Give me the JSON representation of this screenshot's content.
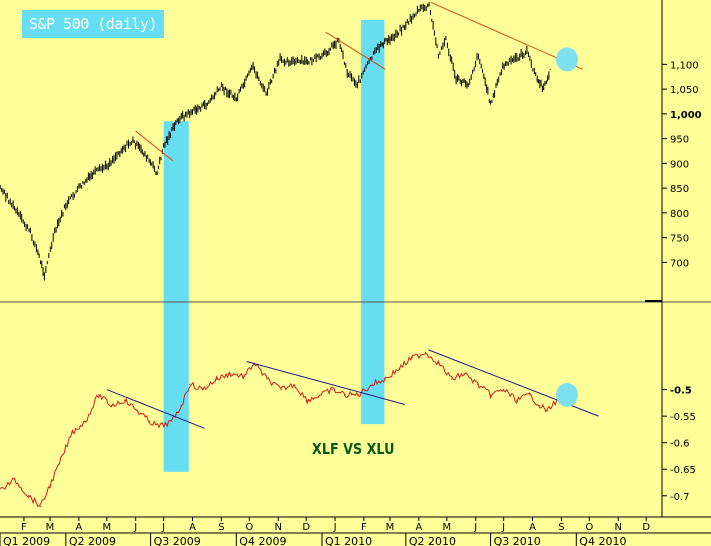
{
  "chart_data": [
    {
      "type": "line",
      "title": "S&P 500 (daily)",
      "xlabel": "",
      "ylabel": "",
      "ylim": [
        620,
        1230
      ],
      "y_ticks": [
        "700",
        "750",
        "800",
        "850",
        "900",
        "950",
        "1,000",
        "1,050",
        "1,100"
      ],
      "y_tick_values": [
        700,
        750,
        800,
        850,
        900,
        950,
        1000,
        1050,
        1100
      ],
      "bold_tick": "1,000",
      "series": [
        {
          "color": "#000000",
          "points": [
            [
              "2009-01-10",
              880
            ],
            [
              "2009-01-25",
              840
            ],
            [
              "2009-02-08",
              800
            ],
            [
              "2009-02-22",
              760
            ],
            [
              "2009-03-02",
              720
            ],
            [
              "2009-03-09",
              676
            ],
            [
              "2009-03-20",
              760
            ],
            [
              "2009-04-01",
              815
            ],
            [
              "2009-04-15",
              850
            ],
            [
              "2009-05-01",
              880
            ],
            [
              "2009-05-15",
              895
            ],
            [
              "2009-06-01",
              930
            ],
            [
              "2009-06-12",
              945
            ],
            [
              "2009-06-25",
              918
            ],
            [
              "2009-07-08",
              880
            ],
            [
              "2009-07-15",
              935
            ],
            [
              "2009-07-31",
              990
            ],
            [
              "2009-08-15",
              1005
            ],
            [
              "2009-08-31",
              1020
            ],
            [
              "2009-09-15",
              1055
            ],
            [
              "2009-10-01",
              1030
            ],
            [
              "2009-10-19",
              1095
            ],
            [
              "2009-11-02",
              1040
            ],
            [
              "2009-11-17",
              1110
            ],
            [
              "2009-12-01",
              1105
            ],
            [
              "2009-12-15",
              1105
            ],
            [
              "2010-01-01",
              1115
            ],
            [
              "2010-01-19",
              1150
            ],
            [
              "2010-01-28",
              1085
            ],
            [
              "2010-02-08",
              1060
            ],
            [
              "2010-02-22",
              1110
            ],
            [
              "2010-03-05",
              1140
            ],
            [
              "2010-03-15",
              1150
            ],
            [
              "2010-04-01",
              1180
            ],
            [
              "2010-04-15",
              1210
            ],
            [
              "2010-04-26",
              1218
            ],
            [
              "2010-05-06",
              1120
            ],
            [
              "2010-05-14",
              1150
            ],
            [
              "2010-05-25",
              1070
            ],
            [
              "2010-06-07",
              1060
            ],
            [
              "2010-06-18",
              1120
            ],
            [
              "2010-07-01",
              1020
            ],
            [
              "2010-07-14",
              1095
            ],
            [
              "2010-07-26",
              1110
            ],
            [
              "2010-08-09",
              1125
            ],
            [
              "2010-08-20",
              1070
            ],
            [
              "2010-08-27",
              1050
            ],
            [
              "2010-09-03",
              1090
            ]
          ]
        }
      ],
      "trendlines": [
        {
          "color": "#d94a1a",
          "from": [
            "2009-06-15",
            965
          ],
          "to": [
            "2009-07-25",
            905
          ]
        },
        {
          "color": "#d94a1a",
          "from": [
            "2010-01-05",
            1165
          ],
          "to": [
            "2010-03-10",
            1090
          ]
        },
        {
          "color": "#d94a1a",
          "from": [
            "2010-04-28",
            1225
          ],
          "to": [
            "2010-10-08",
            1090
          ]
        }
      ],
      "markers": [
        {
          "date": "2010-09-21",
          "value": 1110,
          "color": "#7fe0f0"
        }
      ]
    },
    {
      "type": "line",
      "title": "XLF VS XLU",
      "xlabel": "",
      "ylabel": "",
      "ylim": [
        -0.74,
        -0.335
      ],
      "y_ticks": [
        "-0.5",
        "-0.55",
        "-0.6",
        "-0.65",
        "-0.7"
      ],
      "y_tick_values": [
        -0.5,
        -0.55,
        -0.6,
        -0.65,
        -0.7
      ],
      "bold_tick": "-0.5",
      "series": [
        {
          "color": "#c8201a",
          "points": [
            [
              "2009-01-05",
              -0.66
            ],
            [
              "2009-01-20",
              -0.69
            ],
            [
              "2009-02-05",
              -0.67
            ],
            [
              "2009-02-20",
              -0.7
            ],
            [
              "2009-03-05",
              -0.72
            ],
            [
              "2009-03-15",
              -0.68
            ],
            [
              "2009-03-25",
              -0.64
            ],
            [
              "2009-04-08",
              -0.58
            ],
            [
              "2009-04-22",
              -0.56
            ],
            [
              "2009-05-06",
              -0.51
            ],
            [
              "2009-05-20",
              -0.53
            ],
            [
              "2009-06-03",
              -0.52
            ],
            [
              "2009-06-17",
              -0.54
            ],
            [
              "2009-06-30",
              -0.56
            ],
            [
              "2009-07-10",
              -0.57
            ],
            [
              "2009-07-24",
              -0.56
            ],
            [
              "2009-08-03",
              -0.53
            ],
            [
              "2009-08-12",
              -0.49
            ],
            [
              "2009-08-26",
              -0.5
            ],
            [
              "2009-09-10",
              -0.48
            ],
            [
              "2009-09-25",
              -0.47
            ],
            [
              "2009-10-10",
              -0.475
            ],
            [
              "2009-10-20",
              -0.45
            ],
            [
              "2009-11-03",
              -0.48
            ],
            [
              "2009-11-18",
              -0.5
            ],
            [
              "2009-12-02",
              -0.49
            ],
            [
              "2009-12-16",
              -0.52
            ],
            [
              "2009-12-31",
              -0.51
            ],
            [
              "2010-01-12",
              -0.5
            ],
            [
              "2010-01-26",
              -0.51
            ],
            [
              "2010-02-09",
              -0.51
            ],
            [
              "2010-02-24",
              -0.49
            ],
            [
              "2010-03-10",
              -0.48
            ],
            [
              "2010-03-25",
              -0.46
            ],
            [
              "2010-04-08",
              -0.44
            ],
            [
              "2010-04-22",
              -0.43
            ],
            [
              "2010-05-06",
              -0.45
            ],
            [
              "2010-05-20",
              -0.48
            ],
            [
              "2010-06-03",
              -0.47
            ],
            [
              "2010-06-17",
              -0.49
            ],
            [
              "2010-07-01",
              -0.51
            ],
            [
              "2010-07-15",
              -0.5
            ],
            [
              "2010-07-29",
              -0.52
            ],
            [
              "2010-08-12",
              -0.51
            ],
            [
              "2010-08-23",
              -0.53
            ],
            [
              "2010-08-31",
              -0.54
            ],
            [
              "2010-09-10",
              -0.52
            ]
          ]
        }
      ],
      "trendlines": [
        {
          "color": "#1a1a8c",
          "from": [
            "2009-05-15",
            -0.5
          ],
          "to": [
            "2009-08-28",
            -0.573
          ]
        },
        {
          "color": "#1a1a8c",
          "from": [
            "2009-10-12",
            -0.447
          ],
          "to": [
            "2010-03-31",
            -0.528
          ]
        },
        {
          "color": "#1a1a8c",
          "from": [
            "2010-04-25",
            -0.425
          ],
          "to": [
            "2010-10-25",
            -0.55
          ]
        }
      ],
      "markers": [
        {
          "date": "2010-09-21",
          "value": -0.51,
          "color": "#7fe0f0"
        }
      ]
    }
  ],
  "time_axis": {
    "start": "2009-01-01",
    "end": "2011-01-01",
    "month_labels": [
      "F",
      "M",
      "A",
      "M",
      "J",
      "J",
      "A",
      "S",
      "O",
      "N",
      "D",
      "J",
      "F",
      "M",
      "A",
      "M",
      "J",
      "J",
      "A",
      "S",
      "O",
      "N",
      "D"
    ],
    "month_dates": [
      "2009-02-15",
      "2009-03-15",
      "2009-04-15",
      "2009-05-15",
      "2009-06-15",
      "2009-07-15",
      "2009-08-15",
      "2009-09-15",
      "2009-10-15",
      "2009-11-15",
      "2009-12-15",
      "2010-01-15",
      "2010-02-15",
      "2010-03-15",
      "2010-04-15",
      "2010-05-15",
      "2010-06-15",
      "2010-07-15",
      "2010-08-15",
      "2010-09-15",
      "2010-10-15",
      "2010-11-15",
      "2010-12-15"
    ],
    "quarter_labels": [
      "Q1 2009",
      "Q2 2009",
      "Q3 2009",
      "Q4 2009",
      "Q1 2010",
      "Q2 2010",
      "Q3 2010",
      "Q4 2010"
    ],
    "quarter_dates": [
      "2009-01-01",
      "2009-04-01",
      "2009-07-01",
      "2009-10-01",
      "2010-01-01",
      "2010-04-01",
      "2010-07-01",
      "2010-10-01"
    ]
  },
  "highlights": [
    {
      "from": "2009-07-15",
      "to": "2009-08-11",
      "color": "#66ddf0"
    },
    {
      "from": "2010-02-12",
      "to": "2010-03-09",
      "color": "#66ddf0"
    }
  ],
  "colors": {
    "background": "#ffff99",
    "highlight": "#66ddf0",
    "ratio_title": "#0a5a14"
  }
}
